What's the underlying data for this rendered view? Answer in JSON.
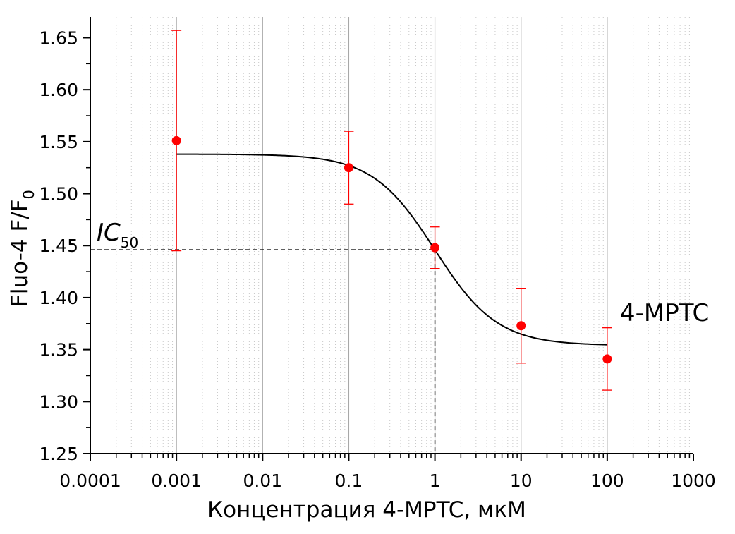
{
  "chart_data": {
    "type": "scatter",
    "xlabel": "Концентрация 4-MPTC, мкМ",
    "ylabel_main": "Fluo-4  F/F",
    "ylabel_subscript": "0",
    "x_scale": "log",
    "xlim": [
      0.0001,
      1000
    ],
    "ylim": [
      1.25,
      1.67
    ],
    "x_ticks": [
      0.0001,
      0.001,
      0.01,
      0.1,
      1,
      10,
      100,
      1000
    ],
    "x_tick_labels": [
      "0.0001",
      "0.001",
      "0.01",
      "0.1",
      "1",
      "10",
      "100",
      "1000"
    ],
    "y_ticks": [
      1.25,
      1.3,
      1.35,
      1.4,
      1.45,
      1.5,
      1.55,
      1.6,
      1.65
    ],
    "y_tick_labels": [
      "1.25",
      "1.30",
      "1.35",
      "1.40",
      "1.45",
      "1.50",
      "1.55",
      "1.60",
      "1.65"
    ],
    "grid": true,
    "series": [
      {
        "name": "4-MPTC",
        "x": [
          0.001,
          0.1,
          1,
          10,
          100
        ],
        "y": [
          1.551,
          1.525,
          1.448,
          1.373,
          1.341
        ],
        "error": [
          0.106,
          0.035,
          0.02,
          0.036,
          0.03
        ],
        "color": "#ff0000"
      }
    ],
    "fit": {
      "model": "logistic",
      "top": 1.538,
      "bottom": 1.354,
      "ec50": 1.0,
      "hill": 1.2,
      "x_range": [
        0.001,
        100
      ],
      "color": "#000000"
    },
    "annotations": {
      "series_label": "4-MPTC",
      "ic50_main": "IC",
      "ic50_sub": "50",
      "ic50_y": 1.446,
      "ic50_x": 1.0
    }
  }
}
